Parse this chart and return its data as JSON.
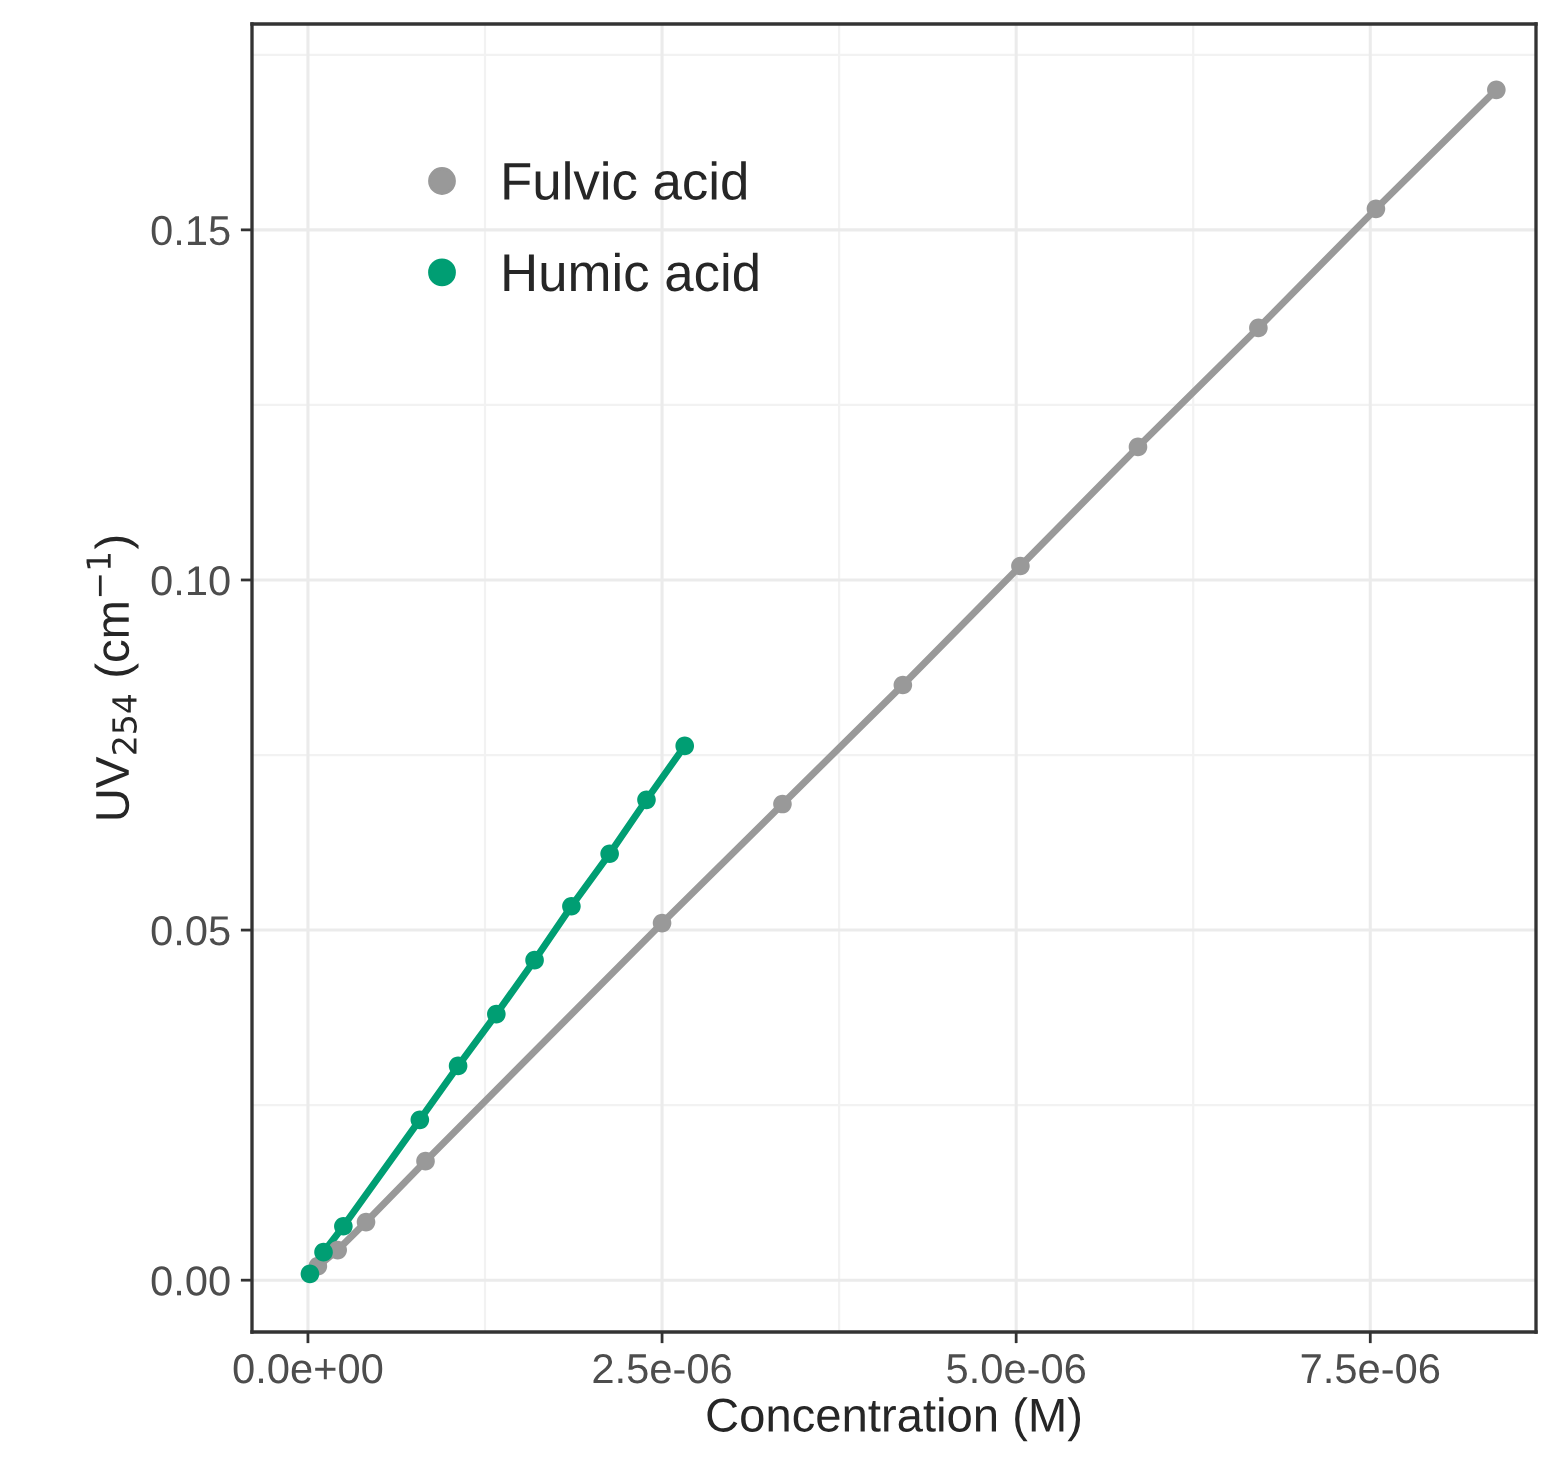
{
  "chart_data": {
    "type": "line",
    "xlabel": "Concentration (M)",
    "ylabel": "UV$_{254}$ (cm$^{−1}$)",
    "series": [
      {
        "name": "Fulvic acid",
        "color": "#999999",
        "x": [
          7e-08,
          2.1e-07,
          4.1e-07,
          8.3e-07,
          2.5e-06,
          3.35e-06,
          4.2e-06,
          5.03e-06,
          5.86e-06,
          6.71e-06,
          7.54e-06,
          8.39e-06
        ],
        "values": [
          0.002,
          0.0043,
          0.0083,
          0.017,
          0.051,
          0.068,
          0.085,
          0.102,
          0.119,
          0.136,
          0.153,
          0.17
        ]
      },
      {
        "name": "Humic acid",
        "color": "#009e73",
        "x": [
          1.4e-08,
          1.1e-07,
          2.5e-07,
          7.9e-07,
          1.06e-06,
          1.33e-06,
          1.6e-06,
          1.86e-06,
          2.13e-06,
          2.39e-06,
          2.66e-06
        ],
        "values": [
          0.0009,
          0.004,
          0.0077,
          0.0229,
          0.0306,
          0.038,
          0.0457,
          0.0534,
          0.0609,
          0.0686,
          0.0763
        ]
      }
    ],
    "xlim": [
      -3.95e-07,
      8.67e-06
    ],
    "ylim": [
      -0.0074,
      0.1794
    ],
    "xticks": [
      {
        "value": 0,
        "label": "0.0e+00"
      },
      {
        "value": 2.5e-06,
        "label": "2.5e-06"
      },
      {
        "value": 5e-06,
        "label": "5.0e-06"
      },
      {
        "value": 7.5e-06,
        "label": "7.5e-06"
      }
    ],
    "yticks": [
      {
        "value": 0,
        "label": "0.00"
      },
      {
        "value": 0.05,
        "label": "0.05"
      },
      {
        "value": 0.1,
        "label": "0.10"
      },
      {
        "value": 0.15,
        "label": "0.15"
      }
    ],
    "grid": true,
    "legend": "top left",
    "marker": "circle",
    "line_style": "solid"
  }
}
